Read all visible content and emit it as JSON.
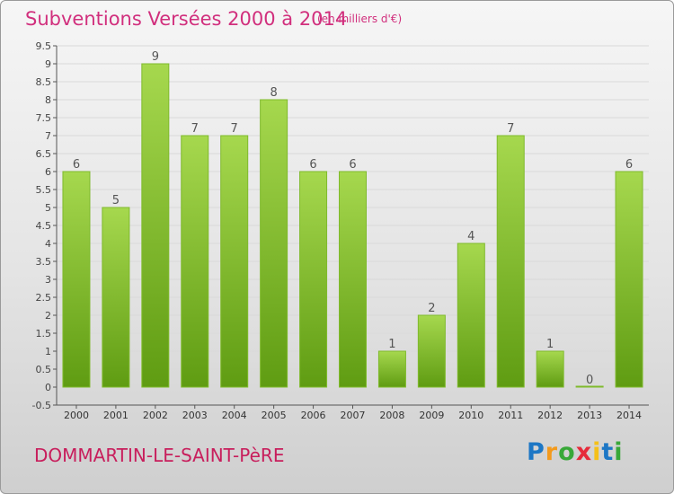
{
  "header": {
    "title": "Subventions Versées 2000 à 2014",
    "subtitle": "(en milliers d'€)"
  },
  "footer": {
    "commune": "DOMMARTIN-LE-SAINT-PèRE",
    "logo_text": "Proxiti"
  },
  "colors": {
    "title": "#d12f7d",
    "commune": "#c81e5c",
    "bar_light": "#a6d84e",
    "bar_dark": "#5f9c12"
  },
  "chart_data": {
    "type": "bar",
    "categories": [
      "2000",
      "2001",
      "2002",
      "2003",
      "2004",
      "2005",
      "2006",
      "2007",
      "2008",
      "2009",
      "2010",
      "2011",
      "2012",
      "2013",
      "2014"
    ],
    "values": [
      6,
      5,
      9,
      7,
      7,
      8,
      6,
      6,
      1,
      2,
      4,
      7,
      1,
      0,
      6
    ],
    "data_labels": [
      "6",
      "5",
      "9",
      "7",
      "7",
      "8",
      "6",
      "6",
      "1",
      "2",
      "4",
      "7",
      "1",
      "0",
      "6"
    ],
    "y_ticks": [
      "-0.5",
      "0",
      "0.5",
      "1",
      "1.5",
      "2",
      "2.5",
      "3",
      "3.5",
      "4",
      "4.5",
      "5",
      "5.5",
      "6",
      "6.5",
      "7",
      "7.5",
      "8",
      "8.5",
      "9",
      "9.5"
    ],
    "ylim": [
      -0.5,
      9.5
    ],
    "grid": true
  }
}
